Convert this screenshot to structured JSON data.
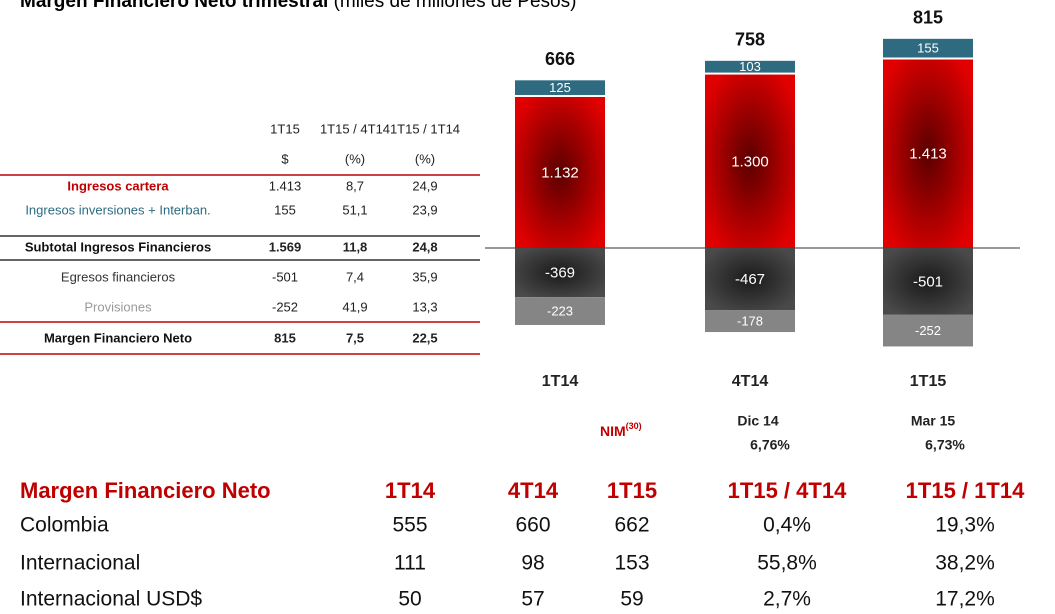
{
  "title": {
    "bold": "Margen Financiero Neto trimestral",
    "rest": "(miles de millones de Pesos)"
  },
  "table1": {
    "header": [
      [
        "1T15",
        "1T15 / 4T14",
        "1T15 / 1T14"
      ],
      [
        "$",
        "(%)",
        "(%)"
      ]
    ],
    "rows": [
      [
        "Ingresos cartera",
        "1.413",
        "8,7",
        "24,9"
      ],
      [
        "Ingresos inversiones + Interban.",
        "155",
        "51,1",
        "23,9"
      ],
      [
        "Subtotal Ingresos Financieros",
        "1.569",
        "11,8",
        "24,8"
      ],
      [
        "Egresos financieros",
        "-501",
        "7,4",
        "35,9"
      ],
      [
        "Provisiones",
        "-252",
        "41,9",
        "13,3"
      ],
      [
        "Margen Financiero Neto",
        "815",
        "7,5",
        "22,5"
      ]
    ]
  },
  "chart_data": {
    "type": "bar",
    "stacked": true,
    "categories": [
      "1T14",
      "4T14",
      "1T15"
    ],
    "totals": [
      666,
      758,
      815
    ],
    "series": [
      {
        "color": "#c00000",
        "values": [
          1132,
          1300,
          1413
        ],
        "value_labels": [
          "1.132",
          "1.300",
          "1.413"
        ]
      },
      {
        "color": "#2e6b80",
        "values": [
          125,
          103,
          155
        ]
      },
      {
        "color": "#333333",
        "values": [
          -369,
          -467,
          -501
        ]
      },
      {
        "color": "#858585",
        "values": [
          -223,
          -178,
          -252
        ]
      }
    ]
  },
  "nim": {
    "label": "NIM",
    "note": "(30)",
    "periods": [
      "Dic 14",
      "Mar 15"
    ],
    "values": [
      "6,76%",
      "6,73%"
    ]
  },
  "table2": {
    "header": [
      "Margen Financiero Neto",
      "1T14",
      "4T14",
      "1T15",
      "1T15 / 4T14",
      "1T15 / 1T14"
    ],
    "rows": [
      [
        "Colombia",
        "555",
        "660",
        "662",
        "0,4%",
        "19,3%"
      ],
      [
        "Internacional",
        "111",
        "98",
        "153",
        "55,8%",
        "38,2%"
      ],
      [
        "Internacional USD$",
        "50",
        "57",
        "59",
        "2,7%",
        "17,2%"
      ]
    ]
  }
}
